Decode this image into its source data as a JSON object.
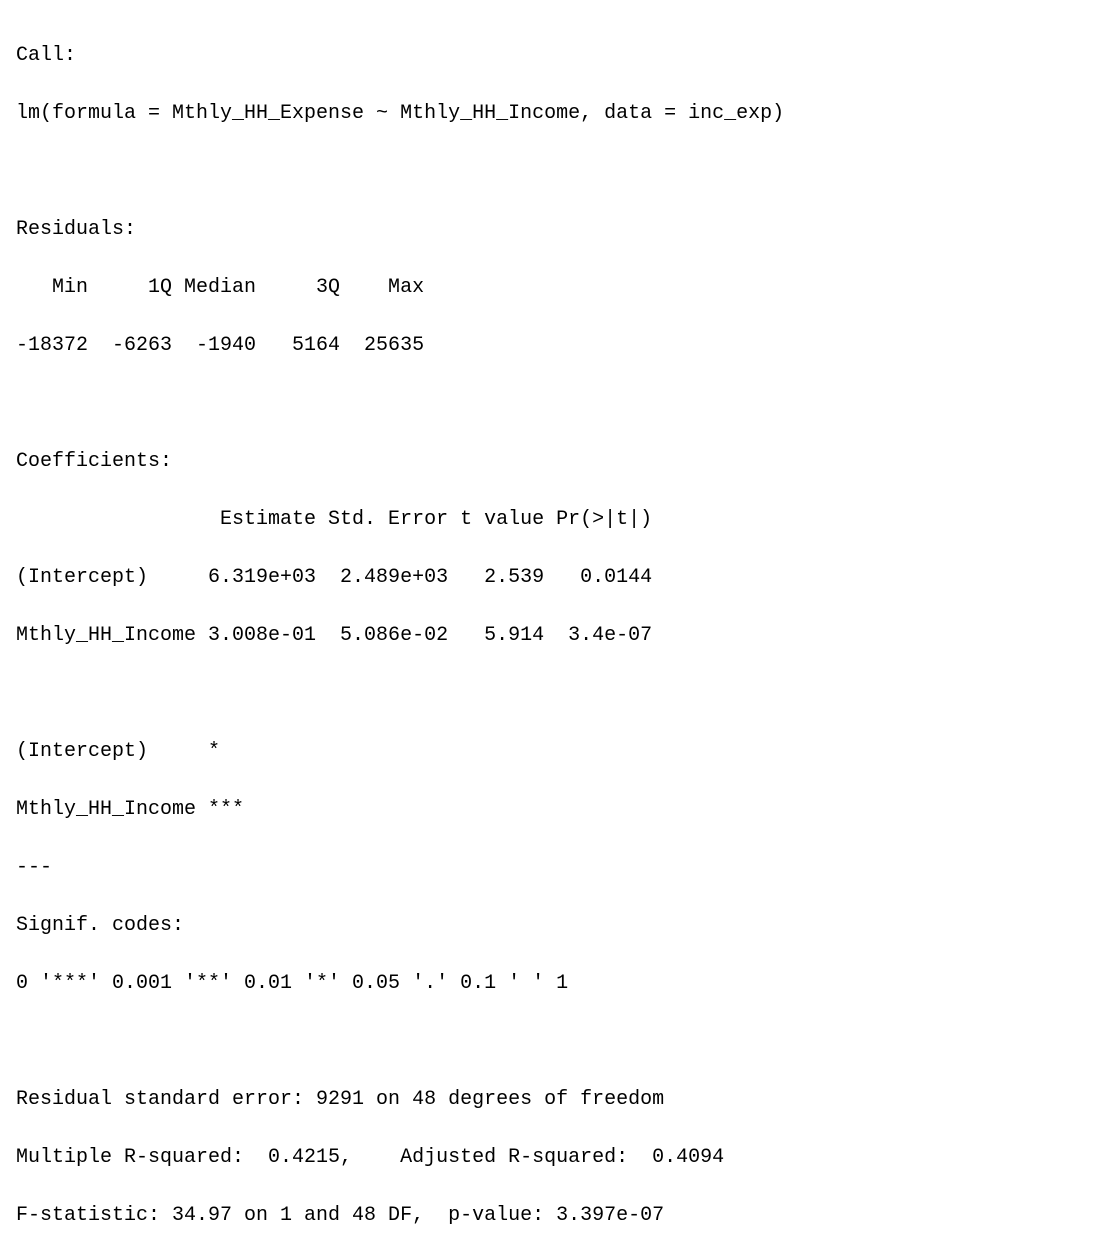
{
  "font": {
    "family_note": "monospace console",
    "size_pt": 15,
    "color": "#000000",
    "background": "#ffffff",
    "line_height": 1.45
  },
  "call": {
    "label": "Call:",
    "formula_line": "lm(formula = Mthly_HH_Expense ~ Mthly_HH_Income, data = inc_exp)"
  },
  "residuals": {
    "label": "Residuals:",
    "header": "   Min     1Q Median     3Q    Max ",
    "values": "-18372  -6263  -1940   5164  25635 ",
    "stats": {
      "Min": -18372,
      "Q1": -6263,
      "Median": -1940,
      "Q3": 5164,
      "Max": 25635
    }
  },
  "coefficients": {
    "label": "Coefficients:",
    "header": "                 Estimate Std. Error t value Pr(>|t|)",
    "rows_text": [
      "(Intercept)     6.319e+03  2.489e+03   2.539   0.0144",
      "Mthly_HH_Income 3.008e-01  5.086e-02   5.914  3.4e-07"
    ],
    "signif_rows_text": [
      "(Intercept)     *  ",
      "Mthly_HH_Income ***"
    ],
    "columns": [
      "Estimate",
      "Std. Error",
      "t value",
      "Pr(>|t|)"
    ],
    "data": [
      {
        "term": "(Intercept)",
        "estimate": "6.319e+03",
        "std_error": "2.489e+03",
        "t_value": "2.539",
        "p_value": "0.0144",
        "stars": "*"
      },
      {
        "term": "Mthly_HH_Income",
        "estimate": "3.008e-01",
        "std_error": "5.086e-02",
        "t_value": "5.914",
        "p_value": "3.4e-07",
        "stars": "***"
      }
    ]
  },
  "divider": "---",
  "signif_codes": {
    "label": "Signif. codes:  ",
    "line": "0 '***' 0.001 '**' 0.01 '*' 0.05 '.' 0.1 ' ' 1"
  },
  "footer": {
    "rse": "Residual standard error: 9291 on 48 degrees of freedom",
    "r2": "Multiple R-squared:  0.4215,\tAdjusted R-squared:  0.4094 ",
    "fstat": "F-statistic: 34.97 on 1 and 48 DF,  p-value: 3.397e-07",
    "values": {
      "residual_std_error": 9291,
      "df_residual": 48,
      "r_squared": 0.4215,
      "adj_r_squared": 0.4094,
      "f_statistic": 34.97,
      "f_df1": 1,
      "f_df2": 48,
      "p_value": "3.397e-07"
    }
  },
  "blank": ""
}
